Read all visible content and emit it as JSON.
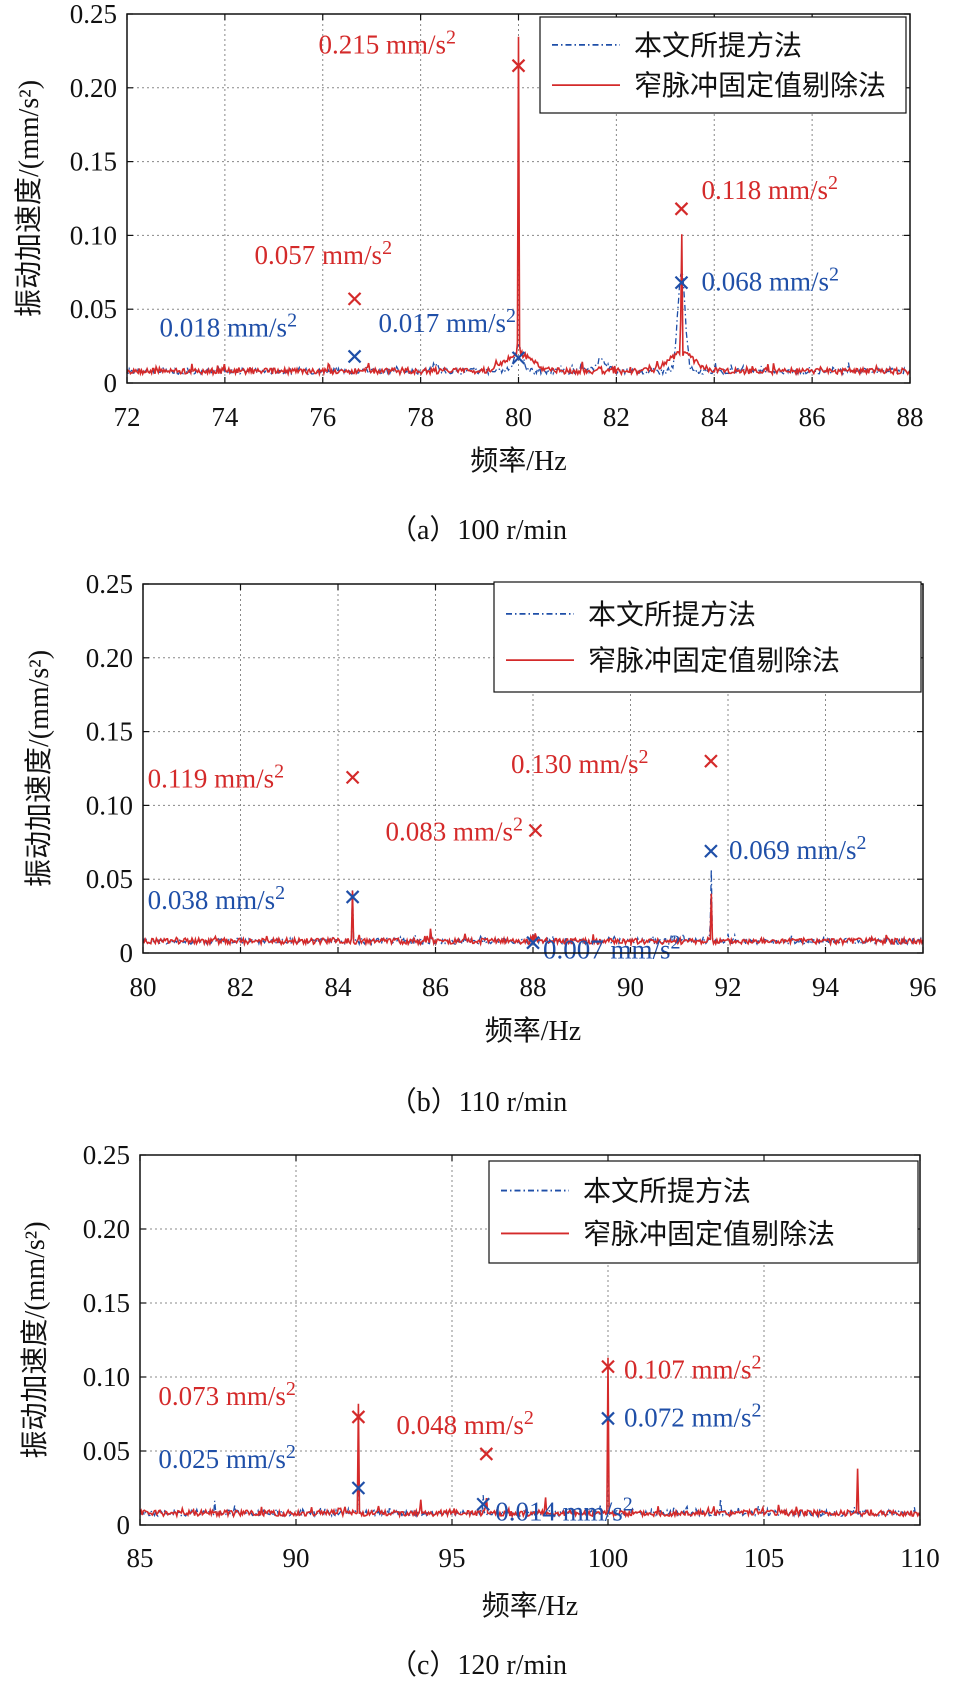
{
  "legend": {
    "series": [
      {
        "name": "本文所提方法",
        "color": "#1f4fa8",
        "style": "dashdot"
      },
      {
        "name": "窄脉冲固定值剔除法",
        "color": "#d42a2a",
        "style": "solid"
      }
    ]
  },
  "chart_data": [
    {
      "type": "line",
      "caption": "（a）100 r/min",
      "xlabel": "频率/Hz",
      "ylabel": "振动加速度/(mm/s²)",
      "xlim": [
        72,
        88
      ],
      "ylim": [
        0,
        0.25
      ],
      "xticks": [
        "72",
        "74",
        "76",
        "78",
        "80",
        "82",
        "84",
        "86",
        "88"
      ],
      "yticks": [
        "0",
        "0.05",
        "0.10",
        "0.15",
        "0.20",
        "0.25"
      ],
      "grid": true,
      "legend_position": "top-right",
      "series": [
        {
          "name": "本文所提方法",
          "peaks": [
            [
              76.65,
              0.018,
              0.0008
            ],
            [
              80.0,
              0.017,
              0.08
            ],
            [
              83.33,
              0.068,
              0.07
            ],
            [
              81.7,
              0.008,
              0.1
            ],
            [
              78.3,
              0.005,
              0.05
            ]
          ]
        },
        {
          "name": "窄脉冲固定值剔除法",
          "peaks": [
            [
              76.65,
              0.057,
              0.0008
            ],
            [
              80.0,
              0.215,
              0.008
            ],
            [
              83.33,
              0.118,
              0.008
            ],
            [
              80.0,
              0.012,
              0.25
            ],
            [
              83.33,
              0.012,
              0.25
            ],
            [
              81.7,
              0.015,
              0.005
            ],
            [
              81.3,
              0.006,
              0.01
            ],
            [
              78.3,
              0.006,
              0.005
            ]
          ]
        }
      ],
      "annotations": [
        {
          "text": "0.215 mm/s",
          "x": 80.0,
          "y": 0.215,
          "color": "#d42a2a"
        },
        {
          "text": "0.057 mm/s",
          "x": 76.65,
          "y": 0.057,
          "color": "#d42a2a"
        },
        {
          "text": "0.118 mm/s",
          "x": 83.33,
          "y": 0.118,
          "color": "#d42a2a"
        },
        {
          "text": "0.018 mm/s",
          "x": 76.65,
          "y": 0.018,
          "color": "#1f4fa8"
        },
        {
          "text": "0.017 mm/s",
          "x": 80.0,
          "y": 0.017,
          "color": "#1f4fa8"
        },
        {
          "text": "0.068 mm/s",
          "x": 83.33,
          "y": 0.068,
          "color": "#1f4fa8"
        }
      ]
    },
    {
      "type": "line",
      "caption": "（b）110 r/min",
      "xlabel": "频率/Hz",
      "ylabel": "振动加速度/(mm/s²)",
      "xlim": [
        80,
        96
      ],
      "ylim": [
        0,
        0.25
      ],
      "xticks": [
        "80",
        "82",
        "84",
        "86",
        "88",
        "90",
        "92",
        "94",
        "96"
      ],
      "yticks": [
        "0",
        "0.05",
        "0.10",
        "0.15",
        "0.20",
        "0.25"
      ],
      "grid": true,
      "legend_position": "top-right",
      "series": [
        {
          "name": "本文所提方法",
          "peaks": [
            [
              84.3,
              0.038,
              0.006
            ],
            [
              88.0,
              0.007,
              0.01
            ],
            [
              91.65,
              0.069,
              0.008
            ],
            [
              85.9,
              0.005,
              0.01
            ]
          ]
        },
        {
          "name": "窄脉冲固定值剔除法",
          "peaks": [
            [
              84.3,
              0.119,
              0.0015
            ],
            [
              88.05,
              0.083,
              0.0015
            ],
            [
              91.65,
              0.13,
              0.004
            ],
            [
              89.8,
              0.015,
              0.001
            ],
            [
              85.9,
              0.007,
              0.01
            ]
          ]
        }
      ],
      "annotations": [
        {
          "text": "0.119 mm/s",
          "x": 84.3,
          "y": 0.119,
          "color": "#d42a2a"
        },
        {
          "text": "0.083 mm/s",
          "x": 88.05,
          "y": 0.083,
          "color": "#d42a2a"
        },
        {
          "text": "0.130 mm/s",
          "x": 91.65,
          "y": 0.13,
          "color": "#d42a2a"
        },
        {
          "text": "0.038 mm/s",
          "x": 84.3,
          "y": 0.038,
          "color": "#1f4fa8"
        },
        {
          "text": "0.007 mm/s",
          "x": 88.0,
          "y": 0.007,
          "color": "#1f4fa8"
        },
        {
          "text": "0.069 mm/s",
          "x": 91.65,
          "y": 0.069,
          "color": "#1f4fa8"
        }
      ]
    },
    {
      "type": "line",
      "caption": "（c）120 r/min",
      "xlabel": "频率/Hz",
      "ylabel": "振动加速度/(mm/s²)",
      "xlim": [
        85,
        110
      ],
      "ylim": [
        0,
        0.25
      ],
      "xticks": [
        "85",
        "90",
        "95",
        "100",
        "105",
        "110"
      ],
      "yticks": [
        "0",
        "0.05",
        "0.10",
        "0.15",
        "0.20",
        "0.25"
      ],
      "grid": true,
      "legend_position": "top-right",
      "series": [
        {
          "name": "本文所提方法",
          "peaks": [
            [
              92.0,
              0.025,
              0.006
            ],
            [
              96.0,
              0.014,
              0.006
            ],
            [
              100.0,
              0.072,
              0.006
            ],
            [
              103.6,
              0.012,
              0.01
            ],
            [
              87.4,
              0.008,
              0.01
            ]
          ]
        },
        {
          "name": "窄脉冲固定值剔除法",
          "peaks": [
            [
              92.0,
              0.073,
              0.004
            ],
            [
              96.1,
              0.048,
              0.004
            ],
            [
              100.0,
              0.107,
              0.005
            ],
            [
              108.0,
              0.03,
              0.006
            ],
            [
              109.7,
              0.03,
              0.006
            ],
            [
              106.2,
              0.014,
              0.005
            ],
            [
              101.6,
              0.01,
              0.005
            ],
            [
              98.0,
              0.012,
              0.005
            ],
            [
              91.4,
              0.01,
              0.005
            ],
            [
              94.0,
              0.01,
              0.005
            ],
            [
              88.9,
              0.006,
              0.005
            ]
          ]
        }
      ],
      "annotations": [
        {
          "text": "0.073 mm/s",
          "x": 92.0,
          "y": 0.073,
          "color": "#d42a2a"
        },
        {
          "text": "0.048 mm/s",
          "x": 96.1,
          "y": 0.048,
          "color": "#d42a2a"
        },
        {
          "text": "0.107 mm/s",
          "x": 100.0,
          "y": 0.107,
          "color": "#d42a2a"
        },
        {
          "text": "0.025 mm/s",
          "x": 92.0,
          "y": 0.025,
          "color": "#1f4fa8"
        },
        {
          "text": "0.014 mm/s",
          "x": 96.0,
          "y": 0.014,
          "color": "#1f4fa8"
        },
        {
          "text": "0.072 mm/s",
          "x": 100.0,
          "y": 0.072,
          "color": "#1f4fa8"
        }
      ]
    }
  ]
}
